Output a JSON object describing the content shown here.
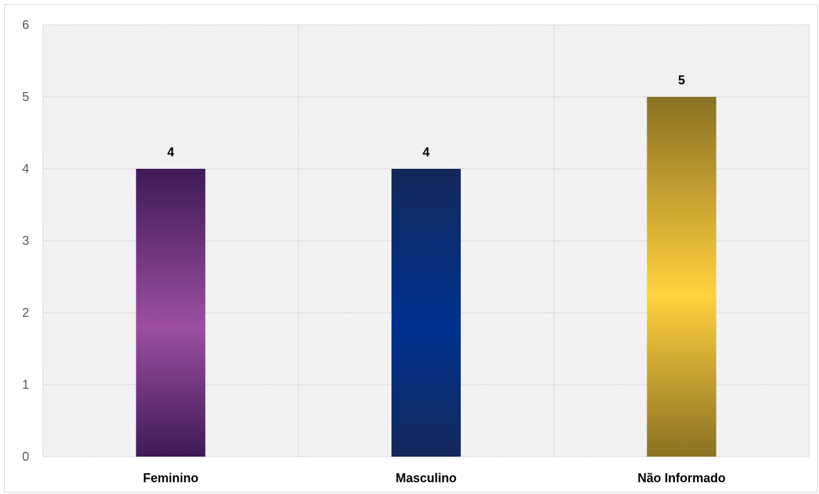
{
  "chart_data": {
    "type": "bar",
    "title": "",
    "xlabel": "",
    "ylabel": "",
    "categories": [
      "Feminino",
      "Masculino",
      "Não Informado"
    ],
    "values": [
      4,
      4,
      5
    ],
    "data_labels": [
      "4",
      "4",
      "5"
    ],
    "ylim": [
      0,
      6
    ],
    "yticks": [
      0,
      1,
      2,
      3,
      4,
      5,
      6
    ],
    "grid": true,
    "legend": "none",
    "colors": {
      "Feminino": {
        "dark": "#3e1a54",
        "light": "#9b4fa1"
      },
      "Masculino": {
        "dark": "#14285a",
        "light": "#00318f"
      },
      "Não Informado": {
        "dark": "#8a7124",
        "light": "#ffd23f"
      },
      "gridline": "#d9d9d9",
      "hatch": "#d4d4d4"
    }
  }
}
